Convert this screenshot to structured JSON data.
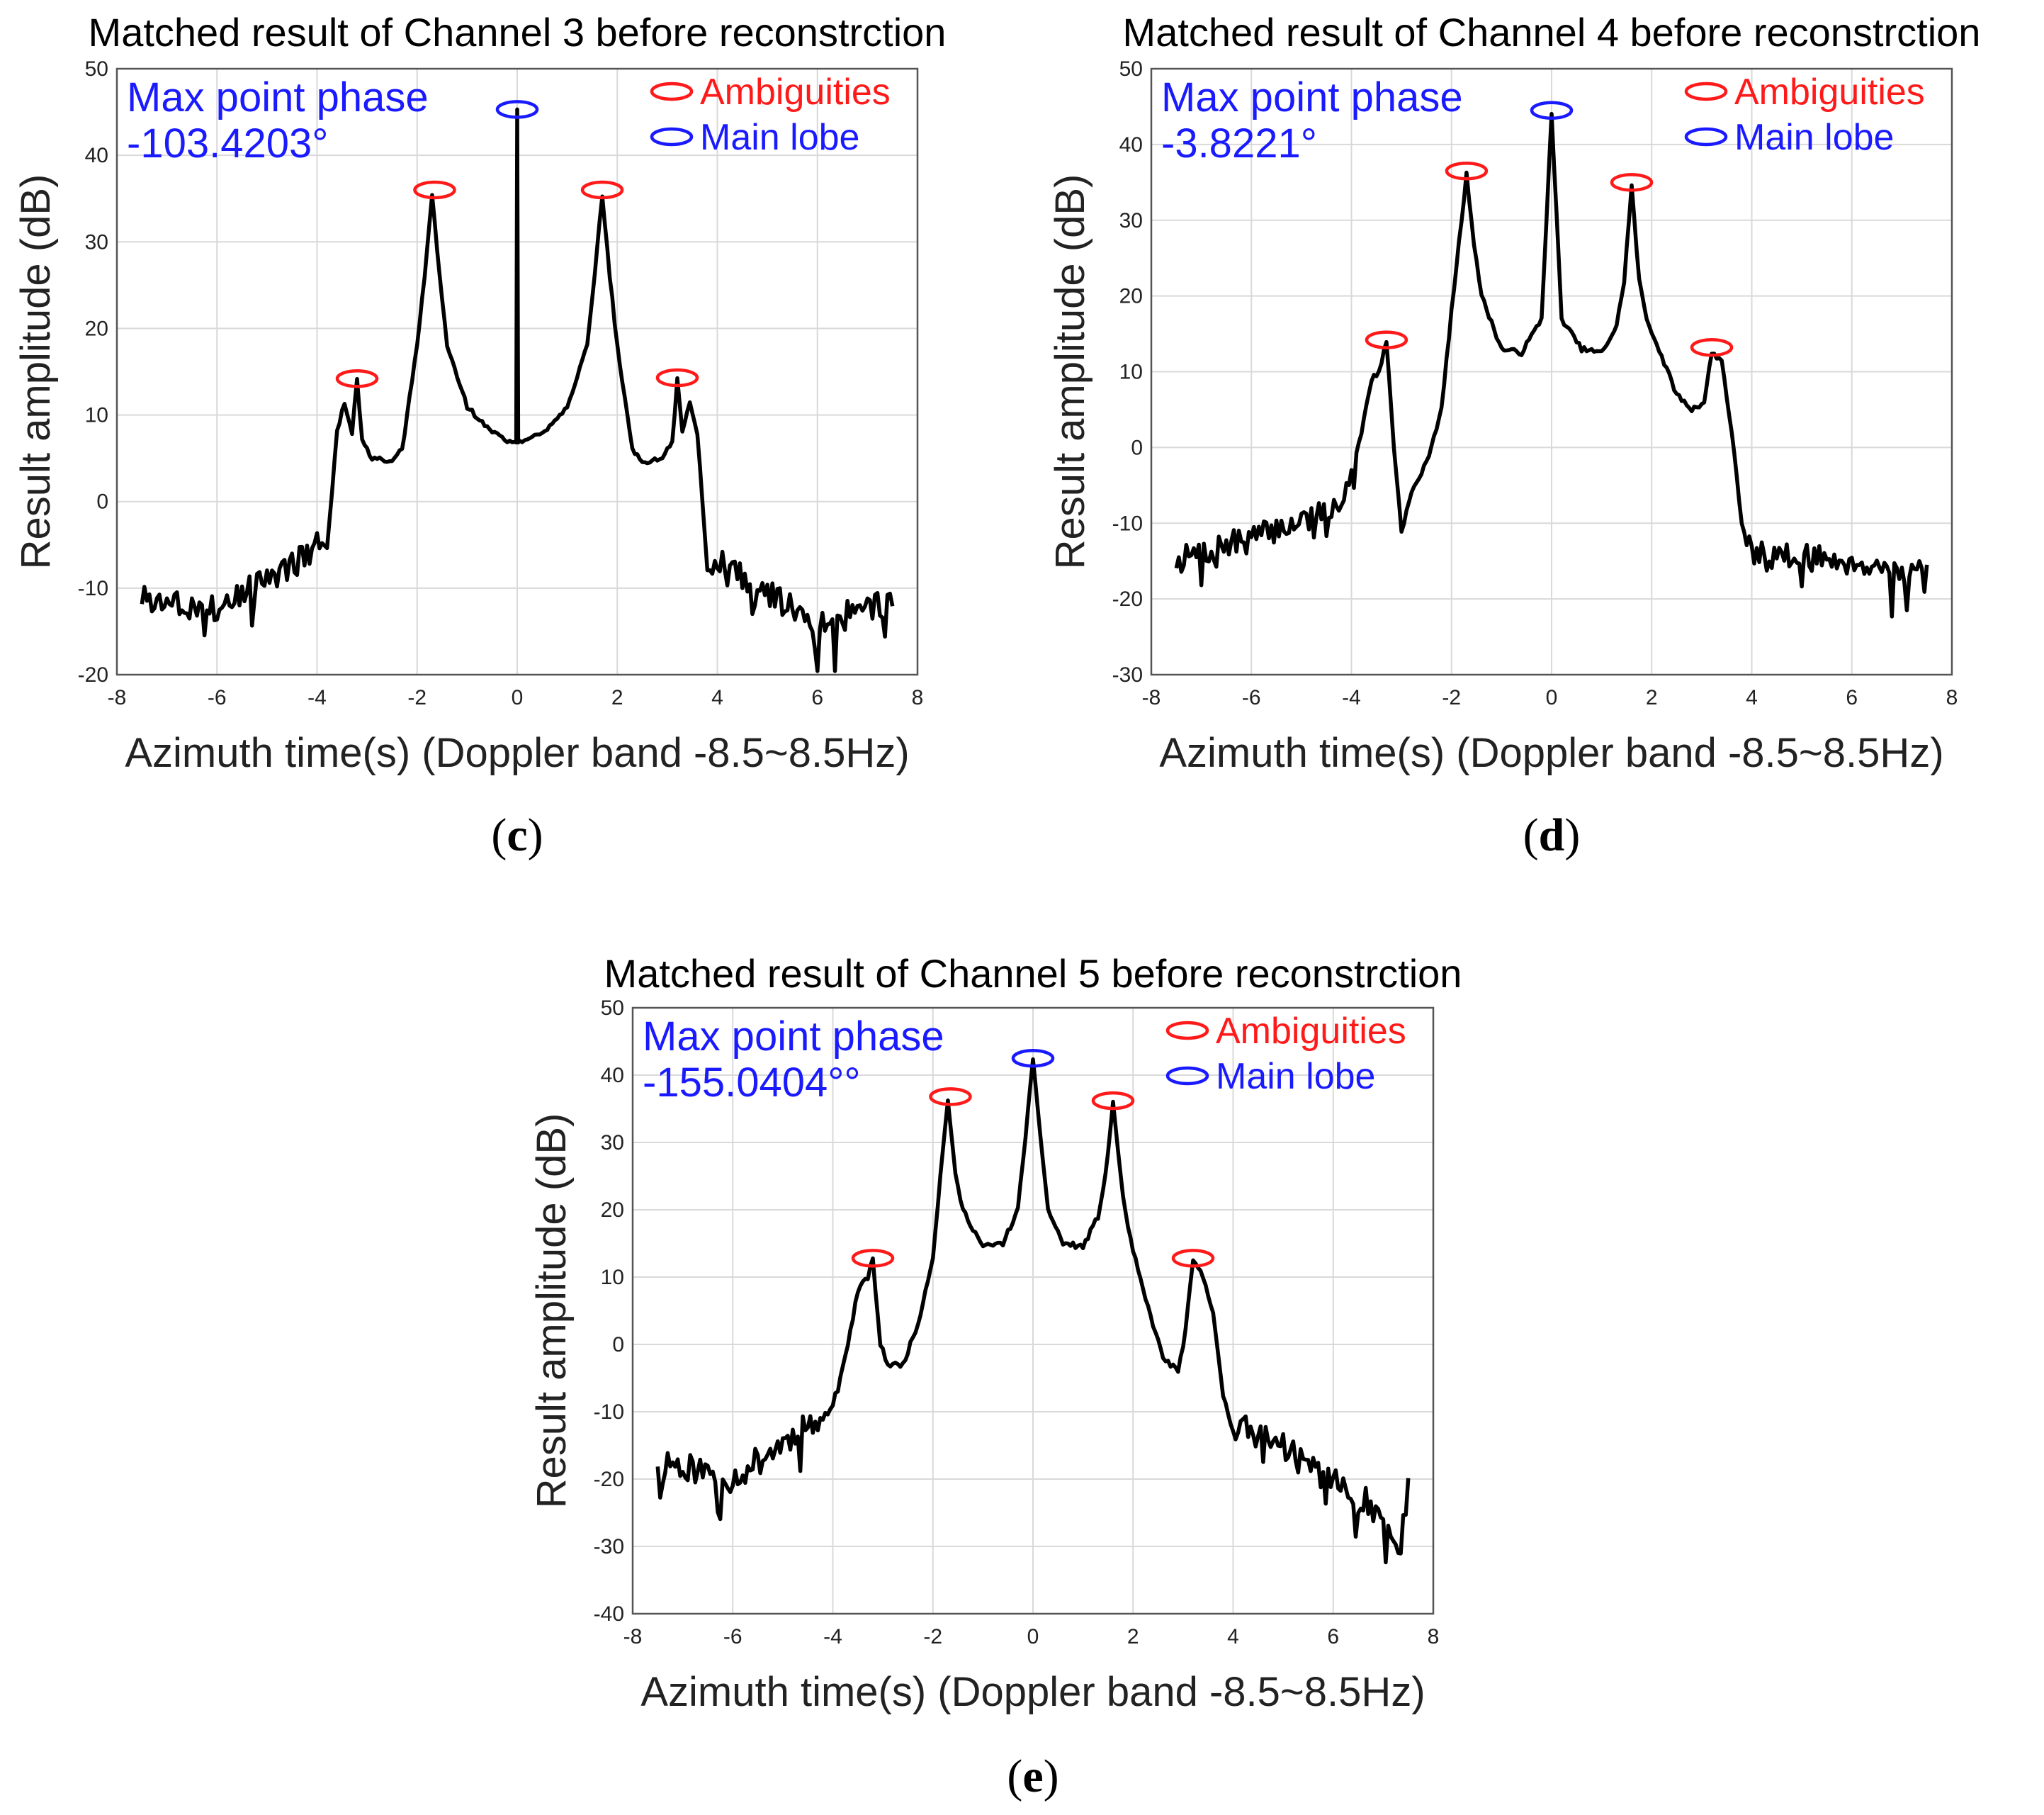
{
  "chart_data": [
    {
      "type": "line",
      "panel_label": "c",
      "title": "Matched result of Channel 3 before reconstrction",
      "xlabel": "Azimuth time(s) (Doppler band -8.5~8.5Hz)",
      "ylabel": "Result amplitude (dB)",
      "xlim": [
        -8,
        8
      ],
      "ylim": [
        -20,
        50
      ],
      "xticks": [
        -8,
        -6,
        -4,
        -2,
        0,
        2,
        4,
        6,
        8
      ],
      "yticks": [
        -20,
        -10,
        0,
        10,
        20,
        30,
        40,
        50
      ],
      "grid": true,
      "annotation": {
        "line1": "Max point phase",
        "line2": "-103.4203°",
        "color": "#1a1aff"
      },
      "legend": [
        {
          "label": "Ambiguities",
          "color": "#ff1a1a"
        },
        {
          "label": "Main lobe",
          "color": "#1a1aff"
        }
      ],
      "markers": [
        {
          "kind": "ambiguity",
          "x": -3.2,
          "y": 14.2
        },
        {
          "kind": "ambiguity",
          "x": -1.65,
          "y": 36
        },
        {
          "kind": "main",
          "x": 0,
          "y": 45.3
        },
        {
          "kind": "ambiguity",
          "x": 1.7,
          "y": 36
        },
        {
          "kind": "ambiguity",
          "x": 3.2,
          "y": 14.3
        }
      ],
      "baseline": [
        [
          -7.5,
          -11
        ],
        [
          -6,
          -12.5
        ],
        [
          -4.3,
          -6.5
        ],
        [
          -4,
          -4
        ],
        [
          -3.8,
          -5.5
        ],
        [
          -3.6,
          8
        ],
        [
          -3.45,
          11.5
        ],
        [
          -3.3,
          8
        ],
        [
          -3.2,
          14
        ],
        [
          -3.1,
          7
        ],
        [
          -2.9,
          5
        ],
        [
          -2.5,
          4.5
        ],
        [
          -2.3,
          6
        ],
        [
          -2.2,
          10
        ],
        [
          -2,
          18
        ],
        [
          -1.85,
          26
        ],
        [
          -1.7,
          35.5
        ],
        [
          -1.55,
          26
        ],
        [
          -1.4,
          18
        ],
        [
          -1,
          11
        ],
        [
          -0.6,
          8.5
        ],
        [
          -0.2,
          7
        ],
        [
          0,
          6.8
        ],
        [
          0.2,
          7
        ],
        [
          0.6,
          8.5
        ],
        [
          1,
          11
        ],
        [
          1.4,
          18
        ],
        [
          1.55,
          26
        ],
        [
          1.7,
          35.5
        ],
        [
          1.85,
          26
        ],
        [
          2,
          18
        ],
        [
          2.2,
          10
        ],
        [
          2.3,
          6
        ],
        [
          2.5,
          4.5
        ],
        [
          2.9,
          5
        ],
        [
          3.1,
          7
        ],
        [
          3.2,
          14
        ],
        [
          3.3,
          8
        ],
        [
          3.45,
          11.5
        ],
        [
          3.6,
          8
        ],
        [
          3.8,
          -8
        ],
        [
          4,
          -7
        ],
        [
          6,
          -14
        ],
        [
          7.5,
          -11.5
        ]
      ],
      "spikes": [
        [
          0,
          45.3
        ]
      ],
      "noise": {
        "seed": 3,
        "amp": 1.6,
        "spike_prob": 0.09,
        "spike_amp": 5,
        "start": -7.5,
        "end": 7.5
      }
    },
    {
      "type": "line",
      "panel_label": "d",
      "title": "Matched result of Channel 4 before reconstrction",
      "xlabel": "Azimuth time(s) (Doppler band -8.5~8.5Hz)",
      "ylabel": "Result amplitude (dB)",
      "xlim": [
        -8,
        8
      ],
      "ylim": [
        -30,
        50
      ],
      "xticks": [
        -8,
        -6,
        -4,
        -2,
        0,
        2,
        4,
        6,
        8
      ],
      "yticks": [
        -30,
        -20,
        -10,
        0,
        10,
        20,
        30,
        40,
        50
      ],
      "grid": true,
      "annotation": {
        "line1": "Max point phase",
        "line2": "-3.8221°",
        "color": "#1a1aff"
      },
      "legend": [
        {
          "label": "Ambiguities",
          "color": "#ff1a1a"
        },
        {
          "label": "Main lobe",
          "color": "#1a1aff"
        }
      ],
      "markers": [
        {
          "kind": "ambiguity",
          "x": -3.3,
          "y": 14.2
        },
        {
          "kind": "ambiguity",
          "x": -1.7,
          "y": 36.5
        },
        {
          "kind": "main",
          "x": 0,
          "y": 44.5
        },
        {
          "kind": "ambiguity",
          "x": 1.6,
          "y": 35
        },
        {
          "kind": "ambiguity",
          "x": 3.2,
          "y": 13.2
        }
      ],
      "baseline": [
        [
          -7.5,
          -15
        ],
        [
          -6,
          -12
        ],
        [
          -4.3,
          -8
        ],
        [
          -4,
          -3
        ],
        [
          -3.8,
          2
        ],
        [
          -3.6,
          9
        ],
        [
          -3.45,
          10
        ],
        [
          -3.3,
          14
        ],
        [
          -3.15,
          0
        ],
        [
          -3,
          -11
        ],
        [
          -2.8,
          -6
        ],
        [
          -2.5,
          -2
        ],
        [
          -2.2,
          5
        ],
        [
          -2,
          18
        ],
        [
          -1.85,
          27
        ],
        [
          -1.7,
          36
        ],
        [
          -1.55,
          27
        ],
        [
          -1.4,
          20
        ],
        [
          -1,
          13
        ],
        [
          -0.6,
          12.5
        ],
        [
          -0.2,
          17
        ],
        [
          0,
          44
        ],
        [
          0.2,
          17
        ],
        [
          0.6,
          13
        ],
        [
          1,
          12.5
        ],
        [
          1.3,
          16
        ],
        [
          1.45,
          22
        ],
        [
          1.6,
          34.5
        ],
        [
          1.75,
          22
        ],
        [
          1.9,
          17
        ],
        [
          2.2,
          12
        ],
        [
          2.5,
          7
        ],
        [
          2.8,
          5
        ],
        [
          3.05,
          6
        ],
        [
          3.2,
          12.5
        ],
        [
          3.4,
          11.5
        ],
        [
          3.6,
          2
        ],
        [
          3.8,
          -10
        ],
        [
          4,
          -14
        ],
        [
          6,
          -15
        ],
        [
          7.5,
          -17
        ]
      ],
      "spikes": [],
      "noise": {
        "seed": 7,
        "amp": 1.8,
        "spike_prob": 0.1,
        "spike_amp": 5.5,
        "start": -7.5,
        "end": 7.5
      }
    },
    {
      "type": "line",
      "panel_label": "e",
      "title": "Matched result of Channel 5 before reconstrction",
      "xlabel": "Azimuth time(s) (Doppler band -8.5~8.5Hz)",
      "ylabel": "Result amplitude (dB)",
      "xlim": [
        -8,
        8
      ],
      "ylim": [
        -40,
        50
      ],
      "xticks": [
        -8,
        -6,
        -4,
        -2,
        0,
        2,
        4,
        6,
        8
      ],
      "yticks": [
        -40,
        -30,
        -20,
        -10,
        0,
        10,
        20,
        30,
        40,
        50
      ],
      "grid": true,
      "annotation": {
        "line1": "Max point phase",
        "line2": "-155.0404°°",
        "color": "#1a1aff"
      },
      "legend": [
        {
          "label": "Ambiguities",
          "color": "#ff1a1a"
        },
        {
          "label": "Main lobe",
          "color": "#1a1aff"
        }
      ],
      "markers": [
        {
          "kind": "ambiguity",
          "x": -3.2,
          "y": 12.8
        },
        {
          "kind": "ambiguity",
          "x": -1.65,
          "y": 36.8
        },
        {
          "kind": "main",
          "x": 0,
          "y": 42.5
        },
        {
          "kind": "ambiguity",
          "x": 1.6,
          "y": 36.2
        },
        {
          "kind": "ambiguity",
          "x": 3.2,
          "y": 12.8
        }
      ],
      "baseline": [
        [
          -7.5,
          -17
        ],
        [
          -6,
          -20
        ],
        [
          -4.5,
          -12
        ],
        [
          -4,
          -10
        ],
        [
          -3.7,
          0
        ],
        [
          -3.5,
          8
        ],
        [
          -3.3,
          10
        ],
        [
          -3.2,
          12.5
        ],
        [
          -3.05,
          0
        ],
        [
          -2.9,
          -3
        ],
        [
          -2.6,
          -3
        ],
        [
          -2.3,
          3
        ],
        [
          -2,
          13
        ],
        [
          -1.85,
          25
        ],
        [
          -1.7,
          36.5
        ],
        [
          -1.55,
          25
        ],
        [
          -1.4,
          20
        ],
        [
          -1,
          14.5
        ],
        [
          -0.6,
          15
        ],
        [
          -0.3,
          20
        ],
        [
          0,
          42
        ],
        [
          0.3,
          20
        ],
        [
          0.6,
          15
        ],
        [
          1,
          14.5
        ],
        [
          1.3,
          19
        ],
        [
          1.45,
          25
        ],
        [
          1.6,
          36
        ],
        [
          1.75,
          25
        ],
        [
          1.9,
          17
        ],
        [
          2.2,
          8
        ],
        [
          2.6,
          -2
        ],
        [
          2.9,
          -4
        ],
        [
          3.05,
          2
        ],
        [
          3.2,
          12.5
        ],
        [
          3.4,
          10
        ],
        [
          3.6,
          5
        ],
        [
          3.8,
          -8
        ],
        [
          4,
          -12
        ],
        [
          5,
          -15
        ],
        [
          6.3,
          -22
        ],
        [
          7,
          -25
        ],
        [
          7.3,
          -33
        ],
        [
          7.5,
          -21
        ]
      ],
      "spikes": [],
      "noise": {
        "seed": 11,
        "amp": 2.2,
        "spike_prob": 0.1,
        "spike_amp": 7,
        "start": -7.5,
        "end": 7.5
      }
    }
  ]
}
